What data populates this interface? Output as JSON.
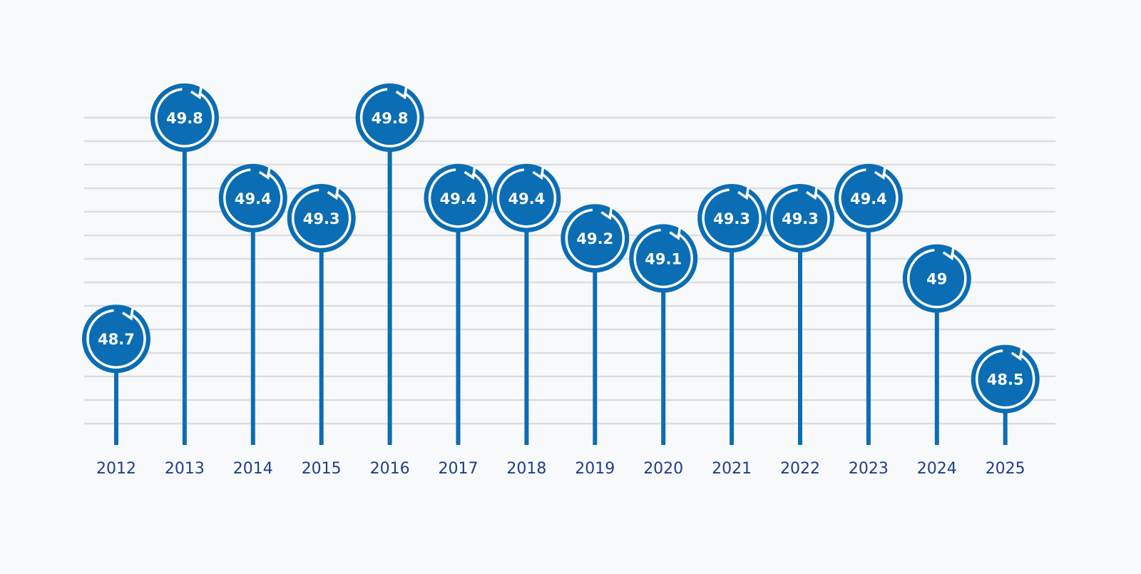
{
  "chart_data": {
    "type": "lollipop",
    "categories": [
      "2012",
      "2013",
      "2014",
      "2015",
      "2016",
      "2017",
      "2018",
      "2019",
      "2020",
      "2021",
      "2022",
      "2023",
      "2024",
      "2025"
    ],
    "values": [
      48.7,
      49.8,
      49.4,
      49.3,
      49.8,
      49.4,
      49.4,
      49.2,
      49.1,
      49.3,
      49.3,
      49.4,
      49,
      48.5
    ],
    "value_labels": [
      "48.7",
      "49.8",
      "49.4",
      "49.3",
      "49.8",
      "49.4",
      "49.4",
      "49.2",
      "49.1",
      "49.3",
      "49.3",
      "49.4",
      "49",
      "48.5"
    ],
    "title": "",
    "xlabel": "",
    "ylabel": "",
    "ylim": [
      48.3,
      49.8
    ],
    "grid": true,
    "legend": "none"
  },
  "colors": {
    "marker": "#0b6db3",
    "stem": "#0b6db3",
    "grid": "#dcdde2",
    "year_text": "#1d3f8a",
    "value_text": "#ffffff",
    "background": "#f8f9fb"
  },
  "icons": {
    "marker": "circular-arrow-icon"
  }
}
